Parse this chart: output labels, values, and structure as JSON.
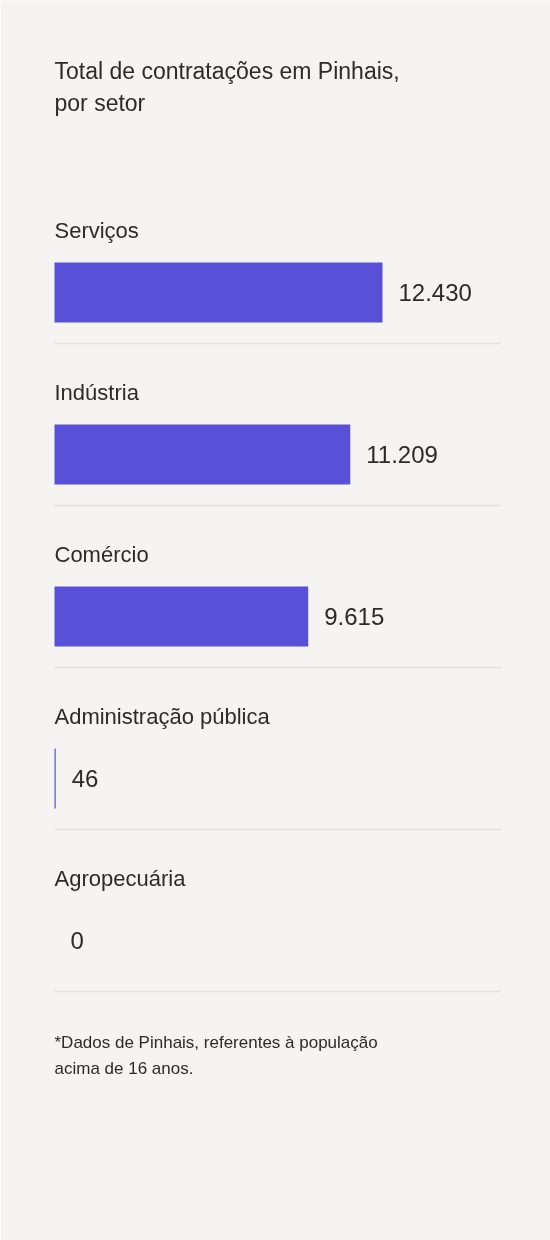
{
  "chart_data": {
    "type": "bar",
    "orientation": "horizontal",
    "title": "Total de contratações em Pinhais, por setor",
    "categories": [
      "Serviços",
      "Indústria",
      "Comércio",
      "Administração pública",
      "Agropecuária"
    ],
    "values": [
      12430,
      11209,
      9615,
      46,
      0
    ],
    "value_labels": [
      "12.430",
      "11.209",
      "9.615",
      "46",
      "0"
    ],
    "color": "#5850d6",
    "annotations": [
      "*Dados de Pinhais, referentes à população acima de 16 anos."
    ]
  }
}
